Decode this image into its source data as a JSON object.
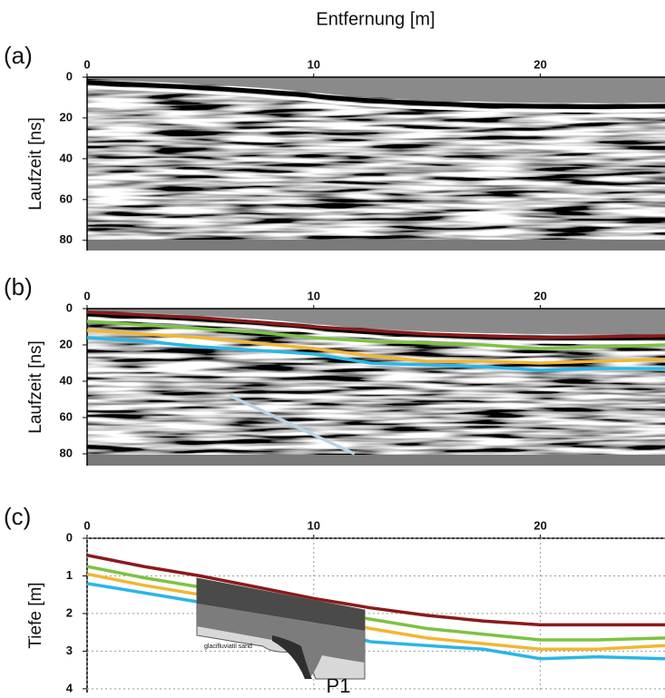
{
  "chart_data": [
    {
      "type": "radargram",
      "label": "(a)",
      "title": "Entfernung [m]",
      "ylabel": "Laufzeit [ns]",
      "xlim": [
        0,
        25.5
      ],
      "xticks": [
        0,
        10,
        20
      ],
      "ylim": [
        0,
        85
      ],
      "yticks": [
        0,
        20,
        40,
        60,
        80
      ],
      "grid": false
    },
    {
      "type": "radargram",
      "label": "(b)",
      "ylabel": "Laufzeit [ns]",
      "xlim": [
        0,
        25.5
      ],
      "xticks": [
        0,
        10,
        20
      ],
      "ylim": [
        0,
        86.5
      ],
      "yticks": [
        0,
        20,
        40,
        60,
        80
      ],
      "grid": false,
      "x": [
        0,
        2.5,
        5,
        7.5,
        10,
        12.5,
        15,
        17.5,
        20,
        22.5,
        25.5
      ],
      "series": [
        {
          "color": "#8b1a1a",
          "values": [
            2,
            3.5,
            5,
            7.5,
            10,
            12,
            14,
            15,
            16,
            15.5,
            15
          ]
        },
        {
          "color": "#7dc242",
          "values": [
            7,
            9,
            11,
            13,
            16,
            18,
            19,
            20,
            22,
            21,
            20
          ]
        },
        {
          "color": "#f2b632",
          "values": [
            12,
            14,
            16,
            19,
            22,
            26,
            29,
            29,
            30,
            29,
            28
          ]
        },
        {
          "color": "#29b6e8",
          "values": [
            16,
            18,
            21,
            23,
            25,
            30,
            31,
            32,
            34,
            33,
            33
          ]
        },
        {
          "color": "#b8d4e6",
          "x": [
            6.3,
            11.8
          ],
          "values": [
            48,
            80
          ]
        }
      ]
    },
    {
      "type": "line",
      "label": "(c)",
      "ylabel": "Tiefe [m]",
      "xlim": [
        0,
        25.5
      ],
      "xticks": [
        0,
        10,
        20
      ],
      "ylim": [
        0,
        4.1
      ],
      "yticks": [
        0,
        1,
        2,
        3,
        4
      ],
      "grid": true,
      "x": [
        0,
        2.5,
        5,
        7.5,
        10,
        12.5,
        15,
        17.5,
        20,
        22.5,
        25.5
      ],
      "series": [
        {
          "color": "#8b1a1a",
          "values": [
            0.45,
            0.75,
            1.0,
            1.3,
            1.6,
            1.85,
            2.05,
            2.2,
            2.3,
            2.3,
            2.3
          ]
        },
        {
          "color": "#7dc242",
          "values": [
            0.75,
            1.05,
            1.3,
            1.6,
            1.9,
            2.15,
            2.4,
            2.55,
            2.7,
            2.7,
            2.65
          ]
        },
        {
          "color": "#f2b632",
          "values": [
            0.95,
            1.25,
            1.5,
            1.8,
            2.1,
            2.4,
            2.65,
            2.8,
            2.95,
            2.95,
            2.85
          ]
        },
        {
          "color": "#29b6e8",
          "values": [
            1.2,
            1.45,
            1.7,
            2.0,
            2.35,
            2.75,
            2.85,
            2.95,
            3.2,
            3.15,
            3.2
          ]
        }
      ],
      "annotations": [
        "P1",
        "glacifluviatil sand"
      ]
    }
  ]
}
